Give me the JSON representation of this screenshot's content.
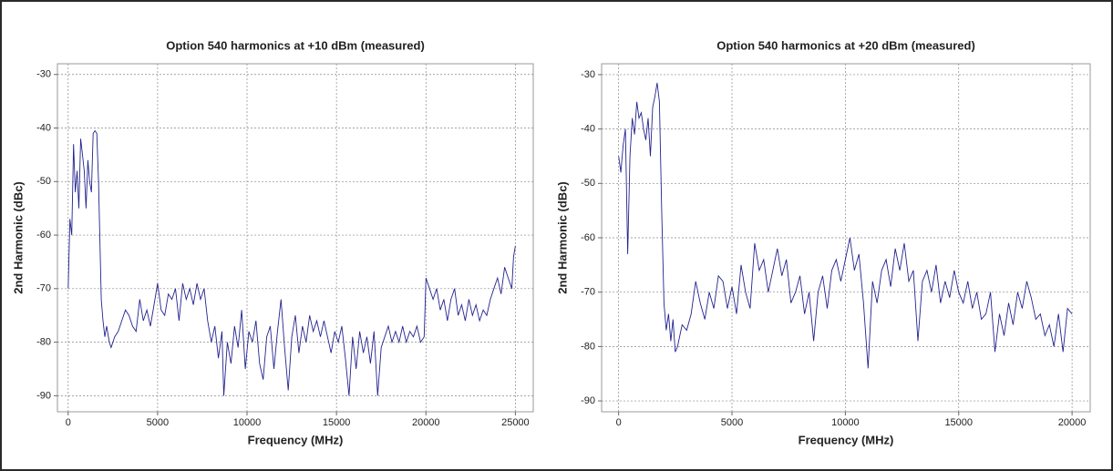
{
  "chart_data": [
    {
      "type": "line",
      "title": "Option 540 harmonics at +10 dBm (measured)",
      "x_label": "Frequency (MHz)",
      "y_label": "2nd Harmonic (dBc)",
      "color": "#23238f",
      "grid": true,
      "xlim": [
        -600,
        26000
      ],
      "ylim": [
        -93,
        -28
      ],
      "xticks": [
        0,
        5000,
        10000,
        15000,
        20000,
        25000
      ],
      "yticks": [
        -30,
        -40,
        -50,
        -60,
        -70,
        -80,
        -90
      ],
      "x": [
        0,
        100,
        200,
        300,
        400,
        500,
        600,
        700,
        800,
        900,
        1000,
        1100,
        1200,
        1300,
        1400,
        1500,
        1600,
        1700,
        1850,
        1950,
        2050,
        2150,
        2300,
        2400,
        2600,
        2800,
        3000,
        3200,
        3400,
        3600,
        3800,
        4000,
        4200,
        4400,
        4600,
        4800,
        5000,
        5200,
        5400,
        5600,
        5800,
        6000,
        6200,
        6400,
        6600,
        6800,
        7000,
        7200,
        7400,
        7600,
        7800,
        8000,
        8200,
        8400,
        8600,
        8700,
        8900,
        9100,
        9300,
        9500,
        9700,
        9900,
        10100,
        10300,
        10500,
        10700,
        10900,
        11100,
        11300,
        11500,
        11700,
        11900,
        12100,
        12300,
        12500,
        12700,
        12900,
        13100,
        13300,
        13500,
        13700,
        13900,
        14100,
        14300,
        14500,
        14700,
        14900,
        15100,
        15300,
        15500,
        15700,
        15900,
        16100,
        16300,
        16500,
        16700,
        16900,
        17100,
        17300,
        17500,
        17700,
        17900,
        18100,
        18300,
        18500,
        18700,
        18900,
        19100,
        19300,
        19500,
        19700,
        19900,
        20000,
        20200,
        20400,
        20600,
        20800,
        21000,
        21200,
        21400,
        21600,
        21800,
        22000,
        22200,
        22400,
        22600,
        22800,
        23000,
        23200,
        23400,
        23600,
        23800,
        24000,
        24200,
        24400,
        24600,
        24800,
        24900,
        25000
      ],
      "values": [
        -70,
        -57,
        -60,
        -43,
        -52,
        -48,
        -55,
        -42,
        -45,
        -48,
        -55,
        -46,
        -50,
        -52,
        -41,
        -40.5,
        -41,
        -50,
        -72,
        -76,
        -79,
        -77,
        -80,
        -81,
        -79,
        -78,
        -76,
        -74,
        -75,
        -77,
        -78,
        -72,
        -76,
        -74,
        -77,
        -73,
        -69,
        -74,
        -75,
        -71,
        -72,
        -70,
        -76,
        -69,
        -72,
        -70,
        -73,
        -69,
        -72,
        -70,
        -76,
        -80,
        -77,
        -83,
        -78,
        -90,
        -80,
        -84,
        -77,
        -81,
        -74,
        -85,
        -78,
        -80,
        -76,
        -84,
        -87,
        -79,
        -77,
        -85,
        -78,
        -72,
        -81,
        -89,
        -79,
        -75,
        -82,
        -77,
        -80,
        -75,
        -78,
        -76,
        -79,
        -76,
        -79,
        -82,
        -78,
        -80,
        -77,
        -83,
        -90,
        -79,
        -85,
        -78,
        -82,
        -79,
        -84,
        -78,
        -90,
        -81,
        -79,
        -77,
        -80,
        -78,
        -80,
        -77,
        -80,
        -78,
        -79,
        -77,
        -80,
        -79,
        -68,
        -70,
        -72,
        -70,
        -74,
        -72,
        -76,
        -72,
        -70,
        -75,
        -73,
        -76,
        -72,
        -75,
        -73,
        -76,
        -74,
        -75,
        -72,
        -70,
        -68,
        -71,
        -66,
        -68,
        -70,
        -64,
        -62
      ]
    },
    {
      "type": "line",
      "title": "Option 540 harmonics at +20 dBm (measured)",
      "x_label": "Frequency (MHz)",
      "y_label": "2nd Harmonic (dBc)",
      "color": "#23238f",
      "grid": true,
      "xlim": [
        -750,
        20800
      ],
      "ylim": [
        -92,
        -28
      ],
      "xticks": [
        0,
        5000,
        10000,
        15000,
        20000
      ],
      "yticks": [
        -30,
        -40,
        -50,
        -60,
        -70,
        -80,
        -90
      ],
      "x": [
        0,
        100,
        200,
        300,
        400,
        500,
        600,
        700,
        800,
        900,
        1000,
        1100,
        1200,
        1300,
        1400,
        1500,
        1600,
        1700,
        1800,
        1900,
        2000,
        2100,
        2200,
        2300,
        2400,
        2500,
        2600,
        2800,
        3000,
        3200,
        3400,
        3600,
        3800,
        4000,
        4200,
        4400,
        4600,
        4800,
        5000,
        5200,
        5400,
        5600,
        5800,
        6000,
        6200,
        6400,
        6600,
        6800,
        7000,
        7200,
        7400,
        7600,
        7800,
        8000,
        8200,
        8400,
        8600,
        8800,
        9000,
        9200,
        9400,
        9600,
        9800,
        10000,
        10200,
        10400,
        10600,
        10800,
        11000,
        11200,
        11400,
        11600,
        11800,
        12000,
        12200,
        12400,
        12600,
        12800,
        13000,
        13200,
        13400,
        13600,
        13800,
        14000,
        14200,
        14400,
        14600,
        14800,
        15000,
        15200,
        15400,
        15600,
        15800,
        16000,
        16200,
        16400,
        16600,
        16800,
        17000,
        17200,
        17400,
        17600,
        17800,
        18000,
        18200,
        18400,
        18600,
        18800,
        19000,
        19200,
        19400,
        19600,
        19800,
        20000
      ],
      "values": [
        -45,
        -48,
        -43,
        -40,
        -63,
        -45,
        -38,
        -41,
        -35,
        -38,
        -37,
        -40,
        -42,
        -38,
        -45,
        -36,
        -34,
        -31.5,
        -35,
        -55,
        -72,
        -77,
        -74,
        -79,
        -75,
        -81,
        -80,
        -76,
        -77,
        -74,
        -68,
        -72,
        -75,
        -70,
        -73,
        -67,
        -68,
        -73,
        -69,
        -74,
        -65,
        -70,
        -73,
        -61,
        -66,
        -64,
        -70,
        -66,
        -62,
        -67,
        -64,
        -72,
        -70,
        -67,
        -74,
        -70,
        -79,
        -70,
        -67,
        -73,
        -66,
        -64,
        -68,
        -64,
        -60,
        -66,
        -63,
        -72,
        -84,
        -68,
        -72,
        -66,
        -64,
        -69,
        -62,
        -66,
        -61,
        -68,
        -66,
        -79,
        -68,
        -66,
        -70,
        -65,
        -72,
        -68,
        -71,
        -66,
        -70,
        -72,
        -68,
        -73,
        -70,
        -75,
        -74,
        -70,
        -81,
        -74,
        -78,
        -72,
        -76,
        -70,
        -73,
        -68,
        -71,
        -75,
        -74,
        -78,
        -76,
        -80,
        -74,
        -81,
        -73,
        -74
      ]
    }
  ]
}
